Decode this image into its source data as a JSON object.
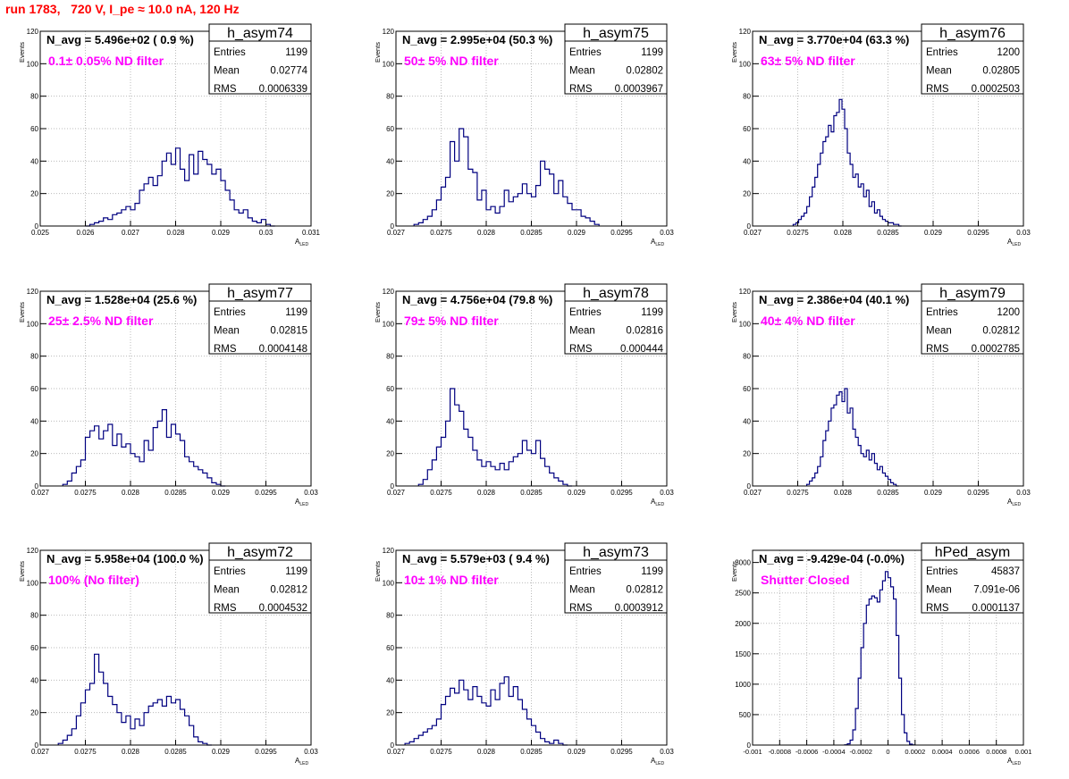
{
  "run_title": "run 1783,   720 V, I_pe ≈ 10.0 nA, 120 Hz",
  "colors": {
    "hist": "#000080",
    "title": "#ff0000",
    "annotation": "#ff00ff",
    "grid": "#bbbbbb"
  },
  "y_axis_label": "Events",
  "x_axis_label": {
    "main": "A",
    "sub": "LED"
  },
  "stats_labels": [
    "Entries",
    "Mean",
    "RMS"
  ],
  "chart_data": [
    {
      "type": "histogram",
      "name": "h_asym74",
      "navg": "N_avg = 5.496e+02 ( 0.9 %)",
      "annotation": "0.1± 0.05% ND filter",
      "stats": {
        "entries": "1199",
        "mean": "0.02774",
        "rms": "0.0006339"
      },
      "xlim": [
        0.025,
        0.031
      ],
      "ylim": [
        0,
        120
      ],
      "xticks": [
        0.025,
        0.026,
        0.027,
        0.028,
        0.029,
        0.03,
        0.031
      ],
      "xtick_labels": [
        "0.025",
        "0.026",
        "0.027",
        "0.028",
        "0.029",
        "0.03",
        "0.031"
      ],
      "yticks": [
        0,
        20,
        40,
        60,
        80,
        100,
        120
      ],
      "ytick_labels": [
        "0",
        "20",
        "40",
        "60",
        "80",
        "100",
        "120"
      ],
      "bins": {
        "start": 0.026,
        "width": 0.0001,
        "values": [
          0,
          1,
          2,
          3,
          5,
          4,
          7,
          8,
          10,
          12,
          10,
          14,
          22,
          26,
          30,
          25,
          31,
          40,
          45,
          38,
          48,
          35,
          28,
          44,
          32,
          46,
          41,
          38,
          32,
          35,
          28,
          22,
          16,
          10,
          8,
          10,
          5,
          3,
          2,
          4,
          1,
          0
        ]
      }
    },
    {
      "type": "histogram",
      "name": "h_asym75",
      "navg": "N_avg = 2.995e+04 (50.3 %)",
      "annotation": "50± 5% ND filter",
      "stats": {
        "entries": "1199",
        "mean": "0.02802",
        "rms": "0.0003967"
      },
      "xlim": [
        0.027,
        0.03
      ],
      "ylim": [
        0,
        120
      ],
      "xticks": [
        0.027,
        0.0275,
        0.028,
        0.0285,
        0.029,
        0.0295,
        0.03
      ],
      "xtick_labels": [
        "0.027",
        "0.0275",
        "0.028",
        "0.0285",
        "0.029",
        "0.0295",
        "0.03"
      ],
      "yticks": [
        0,
        20,
        40,
        60,
        80,
        100,
        120
      ],
      "ytick_labels": [
        "0",
        "20",
        "40",
        "60",
        "80",
        "100",
        "120"
      ],
      "bins": {
        "start": 0.0272,
        "width": 5e-05,
        "values": [
          1,
          2,
          4,
          6,
          10,
          16,
          24,
          30,
          52,
          40,
          60,
          55,
          35,
          33,
          16,
          22,
          10,
          12,
          8,
          12,
          22,
          15,
          18,
          20,
          26,
          20,
          18,
          25,
          40,
          35,
          32,
          20,
          28,
          18,
          14,
          10,
          10,
          6,
          5,
          3,
          1
        ]
      }
    },
    {
      "type": "histogram",
      "name": "h_asym76",
      "navg": "N_avg = 3.770e+04 (63.3 %)",
      "annotation": "63± 5% ND filter",
      "stats": {
        "entries": "1200",
        "mean": "0.02805",
        "rms": "0.0002503"
      },
      "xlim": [
        0.027,
        0.03
      ],
      "ylim": [
        0,
        120
      ],
      "xticks": [
        0.027,
        0.0275,
        0.028,
        0.0285,
        0.029,
        0.0295,
        0.03
      ],
      "xtick_labels": [
        "0.027",
        "0.0275",
        "0.028",
        "0.0285",
        "0.029",
        "0.0295",
        "0.03"
      ],
      "yticks": [
        0,
        20,
        40,
        60,
        80,
        100,
        120
      ],
      "ytick_labels": [
        "0",
        "20",
        "40",
        "60",
        "80",
        "100",
        "120"
      ],
      "bins": {
        "start": 0.02745,
        "width": 3e-05,
        "values": [
          1,
          2,
          4,
          6,
          8,
          12,
          18,
          24,
          30,
          38,
          45,
          52,
          55,
          62,
          58,
          68,
          70,
          78,
          72,
          60,
          45,
          38,
          30,
          32,
          24,
          26,
          18,
          22,
          12,
          15,
          8,
          10,
          6,
          4,
          3,
          2,
          2,
          1,
          1,
          0
        ]
      }
    },
    {
      "type": "histogram",
      "name": "h_asym77",
      "navg": "N_avg = 1.528e+04 (25.6 %)",
      "annotation": "25± 2.5% ND filter",
      "stats": {
        "entries": "1199",
        "mean": "0.02815",
        "rms": "0.0004148"
      },
      "xlim": [
        0.027,
        0.03
      ],
      "ylim": [
        0,
        120
      ],
      "xticks": [
        0.027,
        0.0275,
        0.028,
        0.0285,
        0.029,
        0.0295,
        0.03
      ],
      "xtick_labels": [
        "0.027",
        "0.0275",
        "0.028",
        "0.0285",
        "0.029",
        "0.0295",
        "0.03"
      ],
      "yticks": [
        0,
        20,
        40,
        60,
        80,
        100,
        120
      ],
      "ytick_labels": [
        "0",
        "20",
        "40",
        "60",
        "80",
        "100",
        "120"
      ],
      "bins": {
        "start": 0.02725,
        "width": 5e-05,
        "values": [
          1,
          3,
          8,
          12,
          16,
          30,
          34,
          37,
          29,
          34,
          38,
          25,
          32,
          24,
          26,
          20,
          18,
          15,
          28,
          22,
          36,
          40,
          47,
          30,
          38,
          32,
          28,
          18,
          15,
          12,
          10,
          8,
          5,
          2,
          1,
          0
        ]
      }
    },
    {
      "type": "histogram",
      "name": "h_asym78",
      "navg": "N_avg = 4.756e+04 (79.8 %)",
      "annotation": "79± 5% ND filter",
      "stats": {
        "entries": "1199",
        "mean": "0.02816",
        "rms": "0.000444"
      },
      "xlim": [
        0.027,
        0.03
      ],
      "ylim": [
        0,
        120
      ],
      "xticks": [
        0.027,
        0.0275,
        0.028,
        0.0285,
        0.029,
        0.0295,
        0.03
      ],
      "xtick_labels": [
        "0.027",
        "0.0275",
        "0.028",
        "0.0285",
        "0.029",
        "0.0295",
        "0.03"
      ],
      "yticks": [
        0,
        20,
        40,
        60,
        80,
        100,
        120
      ],
      "ytick_labels": [
        "0",
        "20",
        "40",
        "60",
        "80",
        "100",
        "120"
      ],
      "bins": {
        "start": 0.02725,
        "width": 5e-05,
        "values": [
          1,
          4,
          10,
          16,
          24,
          30,
          40,
          60,
          50,
          46,
          35,
          30,
          22,
          16,
          12,
          15,
          12,
          10,
          14,
          10,
          15,
          18,
          20,
          28,
          22,
          20,
          28,
          17,
          12,
          8,
          5,
          3,
          1,
          0
        ]
      }
    },
    {
      "type": "histogram",
      "name": "h_asym79",
      "navg": "N_avg = 2.386e+04 (40.1 %)",
      "annotation": "40± 4% ND filter",
      "stats": {
        "entries": "1200",
        "mean": "0.02812",
        "rms": "0.0002785"
      },
      "xlim": [
        0.027,
        0.03
      ],
      "ylim": [
        0,
        120
      ],
      "xticks": [
        0.027,
        0.0275,
        0.028,
        0.0285,
        0.029,
        0.0295,
        0.03
      ],
      "xtick_labels": [
        "0.027",
        "0.0275",
        "0.028",
        "0.0285",
        "0.029",
        "0.0295",
        "0.03"
      ],
      "yticks": [
        0,
        20,
        40,
        60,
        80,
        100,
        120
      ],
      "ytick_labels": [
        "0",
        "20",
        "40",
        "60",
        "80",
        "100",
        "120"
      ],
      "bins": {
        "start": 0.0276,
        "width": 3e-05,
        "values": [
          1,
          3,
          5,
          8,
          12,
          18,
          28,
          34,
          40,
          48,
          50,
          56,
          58,
          52,
          60,
          45,
          48,
          35,
          30,
          25,
          20,
          18,
          22,
          16,
          20,
          14,
          10,
          12,
          8,
          6,
          4,
          2,
          1,
          0
        ]
      }
    },
    {
      "type": "histogram",
      "name": "h_asym72",
      "navg": "N_avg = 5.958e+04 (100.0 %)",
      "annotation": "100% (No filter)",
      "stats": {
        "entries": "1199",
        "mean": "0.02812",
        "rms": "0.0004532"
      },
      "xlim": [
        0.027,
        0.03
      ],
      "ylim": [
        0,
        120
      ],
      "xticks": [
        0.027,
        0.0275,
        0.028,
        0.0285,
        0.029,
        0.0295,
        0.03
      ],
      "xtick_labels": [
        "0.027",
        "0.0275",
        "0.028",
        "0.0285",
        "0.029",
        "0.0295",
        "0.03"
      ],
      "yticks": [
        0,
        20,
        40,
        60,
        80,
        100,
        120
      ],
      "ytick_labels": [
        "0",
        "20",
        "40",
        "60",
        "80",
        "100",
        "120"
      ],
      "bins": {
        "start": 0.0272,
        "width": 5e-05,
        "values": [
          1,
          3,
          6,
          10,
          18,
          26,
          34,
          38,
          56,
          45,
          38,
          30,
          25,
          20,
          14,
          18,
          10,
          16,
          12,
          20,
          24,
          26,
          28,
          24,
          30,
          26,
          28,
          22,
          18,
          12,
          5,
          2,
          1,
          0
        ]
      }
    },
    {
      "type": "histogram",
      "name": "h_asym73",
      "navg": "N_avg = 5.579e+03 ( 9.4 %)",
      "annotation": "10± 1% ND filter",
      "stats": {
        "entries": "1199",
        "mean": "0.02812",
        "rms": "0.0003912"
      },
      "xlim": [
        0.027,
        0.03
      ],
      "ylim": [
        0,
        120
      ],
      "xticks": [
        0.027,
        0.0275,
        0.028,
        0.0285,
        0.029,
        0.0295,
        0.03
      ],
      "xtick_labels": [
        "0.027",
        "0.0275",
        "0.028",
        "0.0285",
        "0.029",
        "0.0295",
        "0.03"
      ],
      "yticks": [
        0,
        20,
        40,
        60,
        80,
        100,
        120
      ],
      "ytick_labels": [
        "0",
        "20",
        "40",
        "60",
        "80",
        "100",
        "120"
      ],
      "bins": {
        "start": 0.0271,
        "width": 5e-05,
        "values": [
          1,
          2,
          4,
          6,
          8,
          10,
          12,
          16,
          25,
          30,
          35,
          32,
          40,
          34,
          28,
          36,
          30,
          26,
          24,
          34,
          28,
          38,
          42,
          30,
          36,
          28,
          22,
          16,
          12,
          8,
          4,
          2,
          1,
          3,
          1,
          0
        ]
      }
    },
    {
      "type": "histogram",
      "name": "hPed_asym",
      "navg": "N_avg = -9.429e-04 (-0.0%)",
      "annotation": "Shutter Closed",
      "stats": {
        "entries": "45837",
        "mean": "7.091e-06",
        "rms": "0.0001137"
      },
      "xlim": [
        -0.001,
        0.001
      ],
      "ylim": [
        0,
        3200
      ],
      "xticks": [
        -0.001,
        -0.0008,
        -0.0006,
        -0.0004,
        -0.0002,
        0,
        0.0002,
        0.0004,
        0.0006,
        0.0008,
        0.001
      ],
      "xtick_labels": [
        "-0.001",
        "-0.0008",
        "-0.0006",
        "-0.0004",
        "-0.0002",
        "0",
        "0.0002",
        "0.0004",
        "0.0006",
        "0.0008",
        "0.001"
      ],
      "yticks": [
        0,
        500,
        1000,
        1500,
        2000,
        2500,
        3000
      ],
      "ytick_labels": [
        "0",
        "500",
        "1000",
        "1500",
        "2000",
        "2500",
        "3000"
      ],
      "bins": {
        "start": -0.00032,
        "width": 2e-05,
        "values": [
          5,
          20,
          80,
          250,
          600,
          1100,
          1600,
          2000,
          2300,
          2400,
          2450,
          2420,
          2350,
          2550,
          2700,
          2850,
          2750,
          2600,
          2400,
          1800,
          1100,
          500,
          200,
          60,
          15,
          3
        ]
      }
    }
  ]
}
